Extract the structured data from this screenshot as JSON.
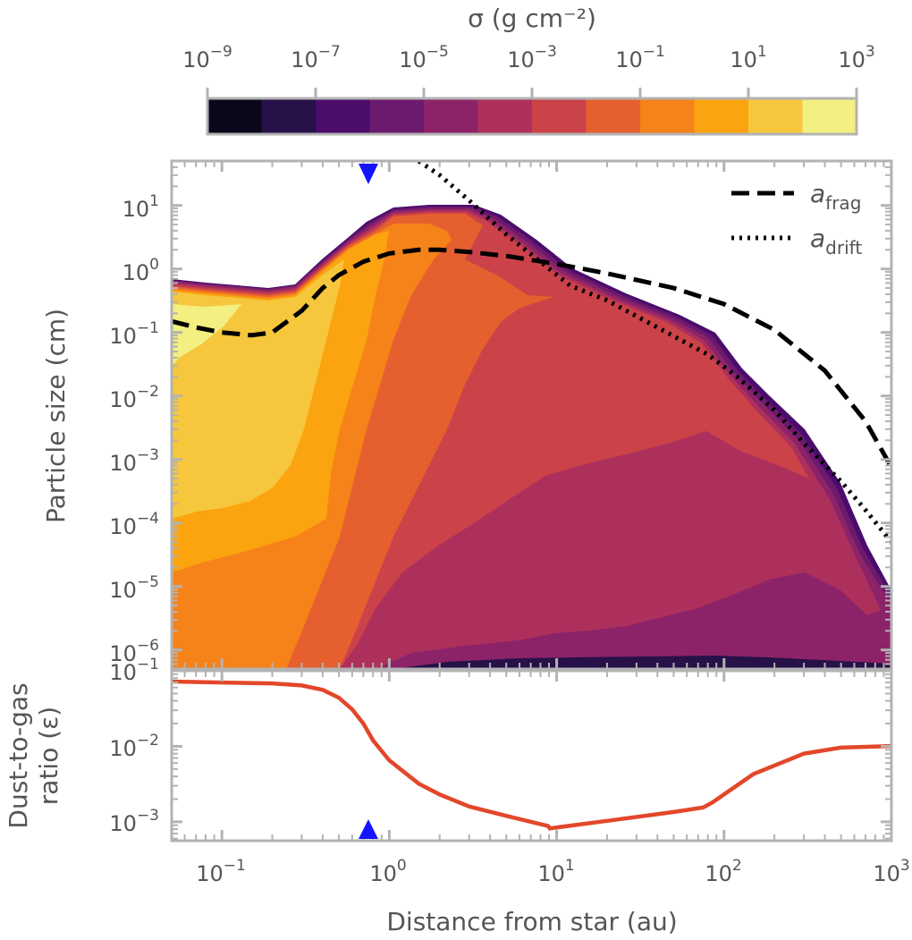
{
  "colors": {
    "axis": "#b3b3b3",
    "text": "#555555",
    "curve": "#e3472a",
    "marker": "#1414ff",
    "colormap": [
      "#0b0619",
      "#271148",
      "#4b0c6b",
      "#6c1a6e",
      "#8c2369",
      "#ad305c",
      "#cc4249",
      "#e6602f",
      "#f6821a",
      "#fca310",
      "#f6c73c",
      "#f3ef80"
    ]
  },
  "chart_data": [
    {
      "type": "colorbar",
      "title": "σ (g cm⁻²)",
      "ticks": [
        {
          "base": "10",
          "exp": "−9"
        },
        {
          "base": "10",
          "exp": "−7"
        },
        {
          "base": "10",
          "exp": "−5"
        },
        {
          "base": "10",
          "exp": "−3"
        },
        {
          "base": "10",
          "exp": "−1"
        },
        {
          "base": "10",
          "exp": "1"
        },
        {
          "base": "10",
          "exp": "3"
        }
      ],
      "levels_log10": [
        -10,
        -9,
        -8,
        -7,
        -6,
        -5,
        -4,
        -3,
        -2,
        -1,
        0,
        1,
        2,
        3
      ]
    },
    {
      "type": "filled-contour",
      "ylabel": "Particle size (cm)",
      "xscale": "log",
      "yscale": "log",
      "xlim_log10": [
        -1.3,
        3
      ],
      "ylim_log10": [
        -6.3,
        1.7
      ],
      "yticks": [
        {
          "base": "10",
          "exp": "1"
        },
        {
          "base": "10",
          "exp": "0"
        },
        {
          "base": "10",
          "exp": "−1"
        },
        {
          "base": "10",
          "exp": "−2"
        },
        {
          "base": "10",
          "exp": "−3"
        },
        {
          "base": "10",
          "exp": "−4"
        },
        {
          "base": "10",
          "exp": "−5"
        },
        {
          "base": "10",
          "exp": "−6"
        }
      ],
      "marker_x_au": 0.75,
      "legend": {
        "position": "top-right",
        "entries": [
          {
            "symbol": "a",
            "sub": "frag",
            "style": "dashed"
          },
          {
            "symbol": "a",
            "sub": "drift",
            "style": "dotted"
          }
        ]
      },
      "series": [
        {
          "name": "a_frag",
          "style": "dashed",
          "x_au": [
            0.05,
            0.07,
            0.1,
            0.15,
            0.2,
            0.3,
            0.4,
            0.5,
            0.7,
            1.0,
            1.5,
            2.0,
            3.0,
            5.0,
            10,
            20,
            50,
            100,
            200,
            400,
            700,
            1000
          ],
          "a_cm": [
            0.15,
            0.12,
            0.1,
            0.09,
            0.1,
            0.22,
            0.5,
            0.8,
            1.3,
            1.75,
            2.0,
            2.0,
            1.85,
            1.6,
            1.2,
            0.85,
            0.5,
            0.28,
            0.11,
            0.025,
            0.004,
            0.00075
          ]
        },
        {
          "name": "a_drift",
          "style": "dotted",
          "x_au": [
            1.5,
            2.0,
            3.0,
            5.0,
            8.0,
            12,
            20,
            40,
            80,
            120,
            200,
            300,
            500,
            700,
            1000
          ],
          "a_cm": [
            50,
            30,
            12,
            3.5,
            1.3,
            0.55,
            0.32,
            0.12,
            0.045,
            0.02,
            0.006,
            0.0018,
            0.00045,
            0.00016,
            5e-05
          ]
        }
      ],
      "contour_bands": [
        {
          "level_index": 1,
          "x_au": [
            0.05,
            0.3,
            0.7,
            1.0,
            1.2,
            5.0,
            8.0,
            20,
            60,
            80,
            100,
            200,
            500,
            1000,
            1000,
            0.05
          ],
          "top_cm": [
            0.8,
            0.55,
            3.5,
            9.0,
            11.0,
            11.0,
            6.0,
            1.4,
            0.18,
            0.1,
            0.055,
            0.008,
            0.0002,
            1e-05
          ]
        },
        {
          "level_index": 2,
          "x_au": [
            0.05,
            0.3,
            0.7,
            1.0,
            1.2,
            5.0,
            8.0,
            20,
            60,
            80,
            100,
            200,
            500,
            1000,
            1000,
            0.05
          ],
          "top_cm": [
            0.78,
            0.54,
            3.4,
            8.8,
            10.8,
            10.8,
            5.8,
            1.35,
            0.17,
            0.095,
            0.05,
            0.0072,
            0.00017,
            8e-06
          ]
        },
        {
          "level_index": 3,
          "x_au": [
            0.05,
            0.3,
            0.7,
            1.0,
            1.2,
            5.0,
            8.0,
            20,
            60,
            80,
            100,
            200,
            500,
            1000,
            1000,
            0.05
          ],
          "top_cm": [
            0.75,
            0.52,
            3.2,
            8.4,
            10.3,
            10.3,
            5.5,
            1.3,
            0.16,
            0.09,
            0.045,
            0.0065,
            0.00015,
            6e-06
          ]
        },
        {
          "level_index": 4,
          "x_au": [
            0.05,
            0.3,
            0.7,
            1.0,
            1.2,
            5.0,
            8.0,
            20,
            60,
            80,
            100,
            200,
            500,
            1000,
            1000,
            0.05
          ],
          "top_cm": [
            0.72,
            0.5,
            3.0,
            8.0,
            9.8,
            9.8,
            5.2,
            1.25,
            0.15,
            0.085,
            0.04,
            0.006,
            0.00013,
            5e-06
          ]
        },
        {
          "level_index": 5,
          "x_au": [
            0.05,
            0.3,
            0.7,
            1.0,
            1.2,
            5.0,
            8.0,
            20,
            60,
            80,
            100,
            200,
            500,
            1000,
            1000,
            0.05
          ],
          "top_cm": [
            0.7,
            0.48,
            2.8,
            7.5,
            9.3,
            9.3,
            5.0,
            1.2,
            0.14,
            0.08,
            0.035,
            0.005,
            0.0001,
            4e-06
          ]
        }
      ]
    },
    {
      "type": "line",
      "ylabel_line1": "Dust-to-gas",
      "ylabel_line2": "ratio (ε)",
      "xlabel": "Distance from star (au)",
      "xscale": "log",
      "yscale": "log",
      "xlim_log10": [
        -1.3,
        3
      ],
      "ylim_log10": [
        -3.25,
        -1
      ],
      "yticks": [
        {
          "base": "10",
          "exp": "−1"
        },
        {
          "base": "10",
          "exp": "−2"
        },
        {
          "base": "10",
          "exp": "−3"
        }
      ],
      "xticks": [
        {
          "base": "10",
          "exp": "−1"
        },
        {
          "base": "10",
          "exp": "0"
        },
        {
          "base": "10",
          "exp": "1"
        },
        {
          "base": "10",
          "exp": "2"
        },
        {
          "base": "10",
          "exp": "3"
        }
      ],
      "marker_x_au": 0.75,
      "series": [
        {
          "name": "dust-to-gas ratio",
          "x_au": [
            0.05,
            0.1,
            0.2,
            0.3,
            0.4,
            0.5,
            0.6,
            0.7,
            0.8,
            1.0,
            1.5,
            2.0,
            3.0,
            5.0,
            8.9,
            9.1,
            20,
            50,
            75,
            85,
            150,
            300,
            500,
            1000
          ],
          "y": [
            0.072,
            0.07,
            0.068,
            0.064,
            0.056,
            0.044,
            0.031,
            0.02,
            0.012,
            0.0065,
            0.0032,
            0.0023,
            0.0016,
            0.0012,
            0.00088,
            0.00082,
            0.00103,
            0.00135,
            0.00155,
            0.0018,
            0.0043,
            0.008,
            0.0096,
            0.0101
          ]
        }
      ]
    }
  ]
}
